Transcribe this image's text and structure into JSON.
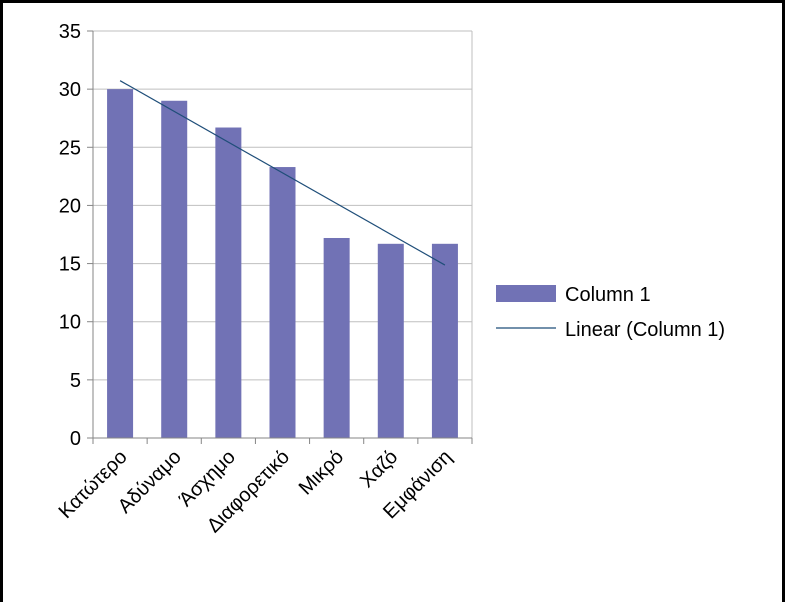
{
  "chart_data": {
    "type": "bar",
    "categories": [
      "Κατώτερο",
      "Αδύναμο",
      "Άσχημο",
      "Διαφορετικό",
      "Μικρό",
      "Χαζό",
      "Εμφάνιση"
    ],
    "series": [
      {
        "name": "Column 1",
        "values": [
          30,
          29,
          26.7,
          23.3,
          17.2,
          16.7,
          16.7
        ]
      }
    ],
    "trendline": {
      "name": "Linear (Column 1)",
      "type": "linear",
      "of_series": "Column 1"
    },
    "title": "",
    "xlabel": "",
    "ylabel": "",
    "ylim": [
      0,
      35
    ],
    "yticks": [
      0,
      5,
      10,
      15,
      20,
      25,
      30,
      35
    ],
    "grid": true,
    "legend_position": "right",
    "colors": {
      "bar": "#7172b5",
      "trendline": "#1f4e79",
      "grid": "#bfbfbf",
      "axis": "#868686",
      "frame": "#000000"
    }
  }
}
